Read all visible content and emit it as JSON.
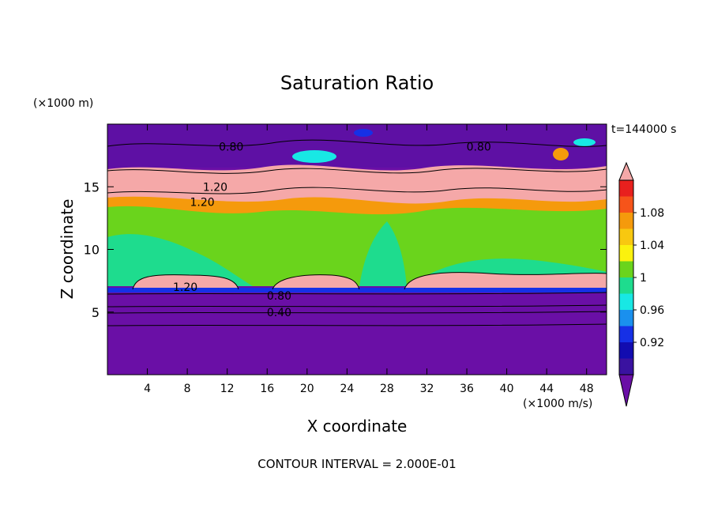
{
  "chart_data": {
    "type": "heatmap",
    "title": "Saturation Ratio",
    "xlabel": "X coordinate",
    "ylabel": "Z coordinate",
    "x_units": "(×1000 m/s)",
    "y_units": "(×1000 m)",
    "time_label": "t=144000 s",
    "footer": "CONTOUR INTERVAL = 2.000E-01",
    "xlim": [
      0,
      50
    ],
    "ylim": [
      0,
      20
    ],
    "x_ticks": [
      "4",
      "8",
      "12",
      "16",
      "20",
      "24",
      "28",
      "32",
      "36",
      "40",
      "44",
      "48"
    ],
    "y_ticks": [
      "5",
      "10",
      "15"
    ],
    "colorbar_labels": [
      "1.08",
      "1.04",
      "1",
      "0.96",
      "0.92"
    ],
    "colorbar_colors": [
      "#f5a8a8",
      "#e8201e",
      "#f6541a",
      "#f59a0c",
      "#f8c810",
      "#fbf20e",
      "#6ad41c",
      "#1edc8e",
      "#18e8e4",
      "#1a90ee",
      "#1630e6",
      "#120cb0",
      "#3a12a0",
      "#6a0fa6"
    ],
    "contour_labels": [
      {
        "text": "0.80",
        "x": 12.4,
        "z": 18.2
      },
      {
        "text": "0.80",
        "x": 37.2,
        "z": 18.2
      },
      {
        "text": "1.20",
        "x": 10.8,
        "z": 15.0
      },
      {
        "text": "1.20",
        "x": 9.5,
        "z": 13.8
      },
      {
        "text": "1.20",
        "x": 7.8,
        "z": 7.0
      },
      {
        "text": "0.80",
        "x": 17.2,
        "z": 6.3
      },
      {
        "text": "0.40",
        "x": 17.2,
        "z": 5.0
      }
    ]
  }
}
